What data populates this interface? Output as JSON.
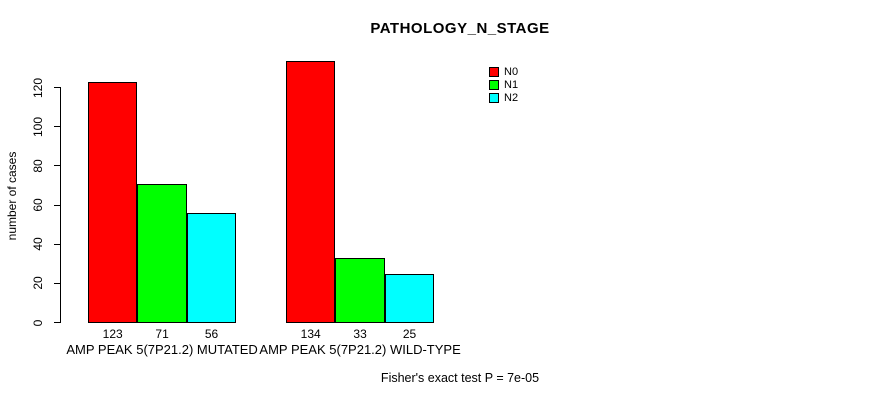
{
  "chart_data": {
    "type": "bar",
    "title": "PATHOLOGY_N_STAGE",
    "xlabel": "",
    "ylabel": "number of cases",
    "ylim": [
      0,
      137
    ],
    "yticks": [
      0,
      20,
      40,
      60,
      80,
      100,
      120
    ],
    "grid": false,
    "legend_position": "top-right",
    "series": [
      {
        "name": "N0",
        "color": "#FF0000"
      },
      {
        "name": "N1",
        "color": "#00FF00"
      },
      {
        "name": "N2",
        "color": "#00FFFF"
      }
    ],
    "groups": [
      {
        "label": "AMP PEAK 5(7P21.2) MUTATED",
        "values": [
          123,
          71,
          56
        ]
      },
      {
        "label": "AMP PEAK 5(7P21.2) WILD-TYPE",
        "values": [
          134,
          33,
          25
        ]
      }
    ],
    "bar_value_labels_shown": true,
    "footnote": "Fisher's exact test P = 7e-05"
  }
}
